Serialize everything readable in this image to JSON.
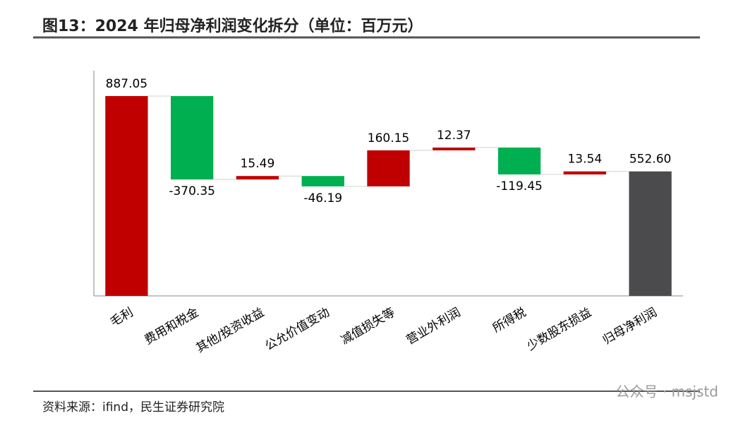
{
  "chart_data": {
    "type": "waterfall",
    "title": "图13：2024 年归母净利润变化拆分（单位：百万元）",
    "source": "资料来源：ifind，民生证券研究院",
    "watermark": "公众号 · msjstd",
    "categories": [
      "毛利",
      "费用和税金",
      "其他/投资收益",
      "公允价值变动",
      "减值损失等",
      "营业外利润",
      "所得税",
      "少数股东损益",
      "归母净利润"
    ],
    "values": [
      887.05,
      -370.35,
      15.49,
      -46.19,
      160.15,
      12.37,
      -119.45,
      13.54,
      552.6
    ],
    "value_labels": [
      "887.05",
      "-370.35",
      "15.49",
      "-46.19",
      "160.15",
      "12.37",
      "-119.45",
      "13.54",
      "552.60"
    ],
    "total_last": true,
    "colors": {
      "increase": "#c00000",
      "decrease": "#00b050",
      "total": "#4b4b4d"
    },
    "ylim": [
      0,
      1000
    ]
  }
}
